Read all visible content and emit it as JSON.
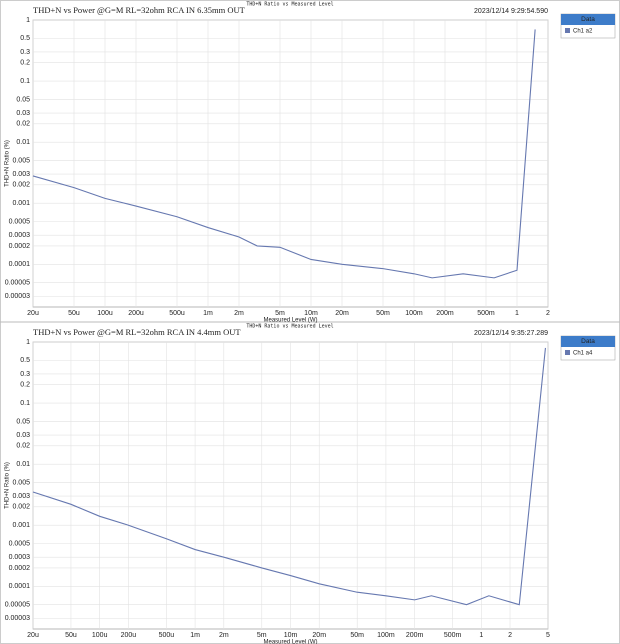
{
  "chart_data": [
    {
      "type": "line",
      "header": "THD+N Ratio vs Measured Level",
      "title": "THD+N vs Power @G=M RL=32ohm RCA IN 6.35mm OUT",
      "timestamp": "2023/12/14 9:29:54.590",
      "legend_title": "Data",
      "xlabel": "Measured Level (W)",
      "ylabel": "THD+N Ratio (%)",
      "xscale": "log",
      "yscale": "log",
      "grid": true,
      "xlim": [
        2e-05,
        2
      ],
      "ylim": [
        2e-05,
        1
      ],
      "xticks": [
        {
          "value": 2e-05,
          "label": "20u"
        },
        {
          "value": 5e-05,
          "label": "50u"
        },
        {
          "value": 0.0001,
          "label": "100u"
        },
        {
          "value": 0.0002,
          "label": "200u"
        },
        {
          "value": 0.0005,
          "label": "500u"
        },
        {
          "value": 0.001,
          "label": "1m"
        },
        {
          "value": 0.002,
          "label": "2m"
        },
        {
          "value": 0.005,
          "label": "5m"
        },
        {
          "value": 0.01,
          "label": "10m"
        },
        {
          "value": 0.02,
          "label": "20m"
        },
        {
          "value": 0.05,
          "label": "50m"
        },
        {
          "value": 0.1,
          "label": "100m"
        },
        {
          "value": 0.2,
          "label": "200m"
        },
        {
          "value": 0.5,
          "label": "500m"
        },
        1,
        2
      ],
      "yticks": [
        1,
        0.5,
        0.3,
        0.2,
        0.1,
        0.05,
        0.03,
        0.02,
        0.01,
        0.005,
        0.003,
        0.002,
        0.001,
        0.0005,
        0.0003,
        0.0002,
        0.0001,
        5e-05,
        3e-05
      ],
      "x": [
        2e-05,
        5e-05,
        0.0001,
        0.0002,
        0.0005,
        0.001,
        0.002,
        0.003,
        0.005,
        0.01,
        0.02,
        0.05,
        0.1,
        0.15,
        0.3,
        0.6,
        1,
        1.5
      ],
      "series": [
        {
          "name": "Ch1 a2",
          "color": "#6678b0",
          "values": [
            0.0028,
            0.0018,
            0.0012,
            0.0009,
            0.0006,
            0.0004,
            0.00028,
            0.0002,
            0.00019,
            0.00012,
            0.0001,
            8.5e-05,
            7e-05,
            6e-05,
            7e-05,
            6e-05,
            8e-05,
            0.7
          ]
        }
      ]
    },
    {
      "type": "line",
      "header": "THD+N Ratio vs Measured Level",
      "title": "THD+N vs Power @G=M RL=32ohm RCA IN 4.4mm OUT",
      "timestamp": "2023/12/14 9:35:27.289",
      "legend_title": "Data",
      "xlabel": "Measured Level (W)",
      "ylabel": "THD+N Ratio (%)",
      "xscale": "log",
      "yscale": "log",
      "grid": true,
      "xlim": [
        2e-05,
        5
      ],
      "ylim": [
        2e-05,
        1
      ],
      "xticks": [
        {
          "value": 2e-05,
          "label": "20u"
        },
        {
          "value": 5e-05,
          "label": "50u"
        },
        {
          "value": 0.0001,
          "label": "100u"
        },
        {
          "value": 0.0002,
          "label": "200u"
        },
        {
          "value": 0.0005,
          "label": "500u"
        },
        {
          "value": 0.001,
          "label": "1m"
        },
        {
          "value": 0.002,
          "label": "2m"
        },
        {
          "value": 0.005,
          "label": "5m"
        },
        {
          "value": 0.01,
          "label": "10m"
        },
        {
          "value": 0.02,
          "label": "20m"
        },
        {
          "value": 0.05,
          "label": "50m"
        },
        {
          "value": 0.1,
          "label": "100m"
        },
        {
          "value": 0.2,
          "label": "200m"
        },
        {
          "value": 0.5,
          "label": "500m"
        },
        1,
        2,
        5
      ],
      "yticks": [
        1,
        0.5,
        0.3,
        0.2,
        0.1,
        0.05,
        0.03,
        0.02,
        0.01,
        0.005,
        0.003,
        0.002,
        0.001,
        0.0005,
        0.0003,
        0.0002,
        0.0001,
        5e-05,
        3e-05
      ],
      "x": [
        2e-05,
        5e-05,
        0.0001,
        0.0002,
        0.0005,
        0.001,
        0.002,
        0.005,
        0.01,
        0.02,
        0.05,
        0.1,
        0.2,
        0.3,
        0.7,
        1.2,
        2.5,
        4.7
      ],
      "series": [
        {
          "name": "Ch1 a4",
          "color": "#6678b0",
          "values": [
            0.0035,
            0.0022,
            0.0014,
            0.001,
            0.0006,
            0.0004,
            0.0003,
            0.0002,
            0.00015,
            0.00011,
            8e-05,
            7e-05,
            6e-05,
            7e-05,
            5e-05,
            7e-05,
            5e-05,
            0.8
          ]
        }
      ]
    }
  ]
}
